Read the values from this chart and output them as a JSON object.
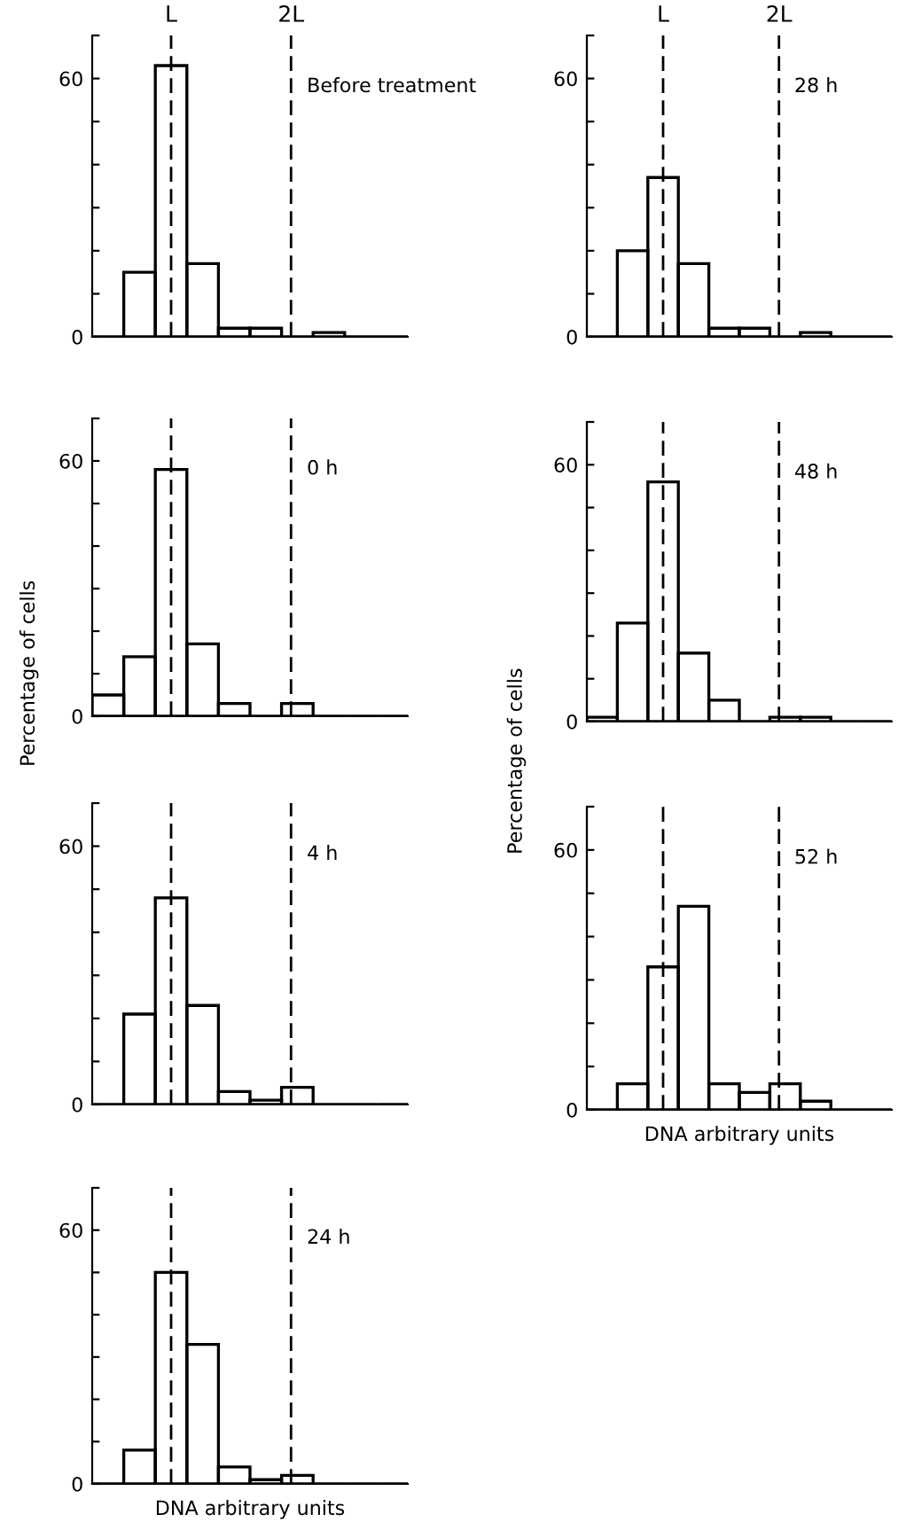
{
  "chart_data": [
    {
      "type": "bar",
      "categories": [
        null,
        null,
        null,
        null,
        null,
        null,
        null,
        null,
        null,
        null
      ],
      "values": [
        0,
        15,
        63,
        17,
        2,
        2,
        0,
        1,
        0,
        0
      ],
      "color": "#000000",
      "ylim": [
        0,
        70
      ],
      "yticks": [
        0,
        {
          "value": 10,
          "label": null
        },
        {
          "value": 20,
          "label": null
        },
        {
          "value": 30,
          "label": null
        },
        {
          "value": 40,
          "label": null
        },
        {
          "value": 50,
          "label": null
        },
        60,
        {
          "value": 70,
          "label": null
        }
      ],
      "grid": false,
      "annotations": [
        "L",
        "2L",
        "Before treatment"
      ]
    },
    {
      "type": "bar",
      "categories": [
        null,
        null,
        null,
        null,
        null,
        null,
        null,
        null,
        null,
        null
      ],
      "values": [
        0,
        20,
        37,
        17,
        2,
        2,
        0,
        1,
        0,
        0
      ],
      "color": "#000000",
      "ylim": [
        0,
        70
      ],
      "yticks": [
        0,
        {
          "value": 10,
          "label": null
        },
        {
          "value": 20,
          "label": null
        },
        {
          "value": 30,
          "label": null
        },
        {
          "value": 40,
          "label": null
        },
        {
          "value": 50,
          "label": null
        },
        60,
        {
          "value": 70,
          "label": null
        }
      ],
      "grid": false,
      "annotations": [
        "L",
        "2L",
        "28 h"
      ]
    },
    {
      "type": "bar",
      "categories": [
        null,
        null,
        null,
        null,
        null,
        null,
        null,
        null,
        null,
        null
      ],
      "values": [
        5,
        14,
        58,
        17,
        3,
        0,
        3,
        0,
        0,
        0
      ],
      "color": "#000000",
      "ylim": [
        0,
        70
      ],
      "yticks": [
        0,
        {
          "value": 10,
          "label": null
        },
        {
          "value": 20,
          "label": null
        },
        {
          "value": 30,
          "label": null
        },
        {
          "value": 40,
          "label": null
        },
        {
          "value": 50,
          "label": null
        },
        60,
        {
          "value": 70,
          "label": null
        }
      ],
      "grid": false,
      "annotations": [
        "0 h"
      ]
    },
    {
      "type": "bar",
      "categories": [
        null,
        null,
        null,
        null,
        null,
        null,
        null,
        null,
        null,
        null
      ],
      "values": [
        1,
        23,
        56,
        16,
        5,
        0,
        1,
        1,
        0,
        0
      ],
      "color": "#000000",
      "ylim": [
        0,
        70
      ],
      "yticks": [
        0,
        {
          "value": 10,
          "label": null
        },
        {
          "value": 20,
          "label": null
        },
        {
          "value": 30,
          "label": null
        },
        {
          "value": 40,
          "label": null
        },
        {
          "value": 50,
          "label": null
        },
        60,
        {
          "value": 70,
          "label": null
        }
      ],
      "grid": false,
      "annotations": [
        "48 h"
      ]
    },
    {
      "type": "bar",
      "categories": [
        null,
        null,
        null,
        null,
        null,
        null,
        null,
        null,
        null,
        null
      ],
      "values": [
        0,
        21,
        48,
        23,
        3,
        1,
        4,
        0,
        0,
        0
      ],
      "color": "#000000",
      "ylim": [
        0,
        70
      ],
      "yticks": [
        0,
        {
          "value": 10,
          "label": null
        },
        {
          "value": 20,
          "label": null
        },
        {
          "value": 30,
          "label": null
        },
        {
          "value": 40,
          "label": null
        },
        {
          "value": 50,
          "label": null
        },
        60,
        {
          "value": 70,
          "label": null
        }
      ],
      "grid": false,
      "ylabel": "Percentage of cells",
      "annotations": [
        "4 h"
      ]
    },
    {
      "type": "bar",
      "categories": [
        null,
        null,
        null,
        null,
        null,
        null,
        null,
        null,
        null,
        null
      ],
      "values": [
        0,
        6,
        33,
        47,
        6,
        4,
        6,
        2,
        0,
        0
      ],
      "color": "#000000",
      "ylim": [
        0,
        70
      ],
      "yticks": [
        0,
        {
          "value": 10,
          "label": null
        },
        {
          "value": 20,
          "label": null
        },
        {
          "value": 30,
          "label": null
        },
        {
          "value": 40,
          "label": null
        },
        {
          "value": 50,
          "label": null
        },
        60,
        {
          "value": 70,
          "label": null
        }
      ],
      "grid": false,
      "ylabel": "Percentage of cells",
      "xlabel": "DNA arbitrary units",
      "annotations": [
        "52 h"
      ]
    },
    {
      "type": "bar",
      "categories": [
        null,
        null,
        null,
        null,
        null,
        null,
        null,
        null,
        null,
        null
      ],
      "values": [
        0,
        8,
        50,
        33,
        4,
        1,
        2,
        0,
        0,
        0
      ],
      "color": "#000000",
      "ylim": [
        0,
        70
      ],
      "yticks": [
        0,
        {
          "value": 10,
          "label": null
        },
        {
          "value": 20,
          "label": null
        },
        {
          "value": 30,
          "label": null
        },
        {
          "value": 40,
          "label": null
        },
        {
          "value": 50,
          "label": null
        },
        60,
        {
          "value": 70,
          "label": null
        }
      ],
      "grid": false,
      "xlabel": "DNA arbitrary units",
      "annotations": [
        "24 h"
      ]
    }
  ]
}
